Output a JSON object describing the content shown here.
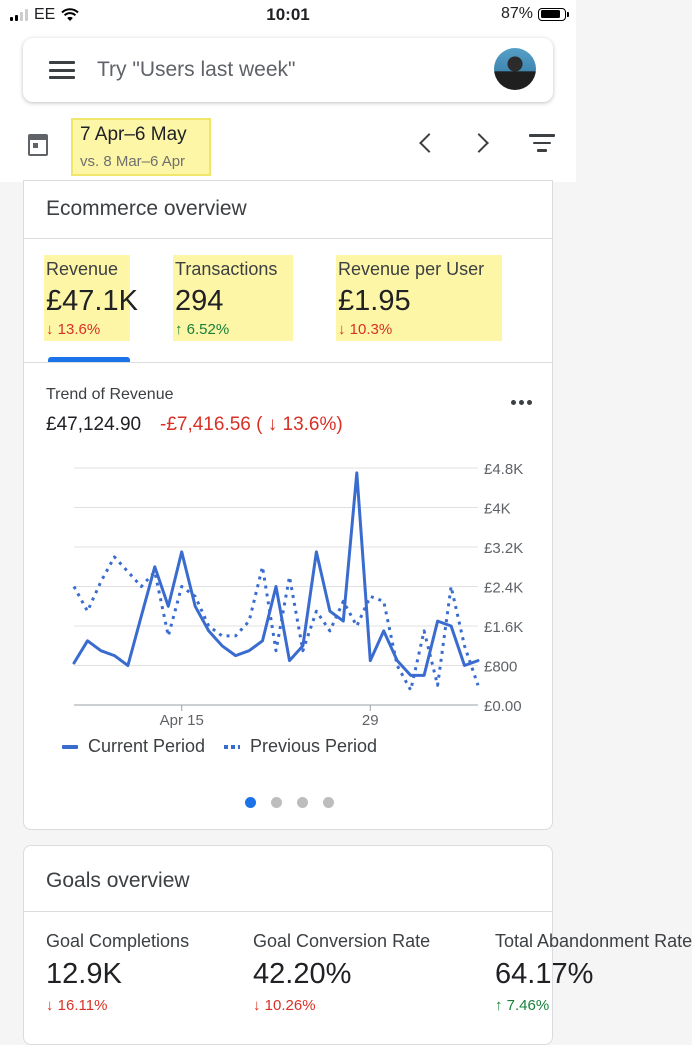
{
  "status_bar": {
    "carrier": "EE",
    "time": "10:01",
    "battery": "87%"
  },
  "search": {
    "placeholder": "Try \"Users last week\""
  },
  "date_range": {
    "main": "7 Apr–6 May",
    "comparison": "vs. 8 Mar–6 Apr"
  },
  "ecommerce": {
    "title": "Ecommerce overview",
    "metrics": [
      {
        "label": "Revenue",
        "value": "£47.1K",
        "change": "↓ 13.6%"
      },
      {
        "label": "Transactions",
        "value": "294",
        "change": "↑ 6.52%"
      },
      {
        "label": "Revenue per User",
        "value": "£1.95",
        "change": "↓ 10.3%"
      }
    ]
  },
  "trend": {
    "title": "Trend of Revenue",
    "total": "£47,124.90",
    "diff": "-£7,416.56 ( ↓ 13.6%)"
  },
  "legend": {
    "current": "Current Period",
    "previous": "Previous Period"
  },
  "goals": {
    "title": "Goals overview",
    "metrics": [
      {
        "label": "Goal Completions",
        "value": "12.9K",
        "change": "↓ 16.11%"
      },
      {
        "label": "Goal Conversion Rate",
        "value": "42.20%",
        "change": "↓ 10.26%"
      },
      {
        "label": "Total Abandonment Rate",
        "value": "64.17%",
        "change": "↑ 7.46%"
      }
    ]
  },
  "colors": {
    "accent": "#1a73e8",
    "series": "#3a6ccf",
    "negative": "#d93025",
    "positive": "#188038",
    "highlight": "#fdf6a7"
  },
  "chart_data": {
    "type": "line",
    "x_ticks": [
      "Apr 15",
      "29"
    ],
    "y_ticks": [
      "£4.8K",
      "£4K",
      "£3.2K",
      "£2.4K",
      "£1.6K",
      "£800",
      "£0.00"
    ],
    "ylim": [
      0,
      4800
    ],
    "legend_position": "bottom",
    "grid": true,
    "series": [
      {
        "name": "Current Period",
        "style": "solid",
        "values": [
          850,
          1300,
          1100,
          1000,
          800,
          1800,
          2800,
          2000,
          3100,
          2000,
          1500,
          1200,
          1000,
          1100,
          1300,
          2400,
          900,
          1200,
          3100,
          1900,
          1700,
          4700,
          900,
          1500,
          900,
          600,
          600,
          1700,
          1600,
          800,
          900
        ]
      },
      {
        "name": "Previous Period",
        "style": "dotted",
        "values": [
          2400,
          1900,
          2500,
          3000,
          2700,
          2400,
          2700,
          1400,
          2400,
          2200,
          1600,
          1400,
          1400,
          1700,
          2800,
          1100,
          2600,
          1100,
          1900,
          1500,
          2100,
          1600,
          2200,
          2100,
          800,
          300,
          1500,
          400,
          2400,
          1200,
          400
        ]
      }
    ]
  }
}
